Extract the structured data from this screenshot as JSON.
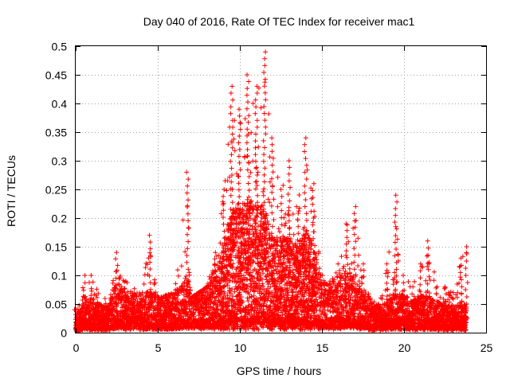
{
  "chart_data": {
    "type": "scatter",
    "title": "Day 040 of 2016, Rate Of TEC Index for receiver mac1",
    "xlabel": "GPS time / hours",
    "ylabel": "ROTI / TECUs",
    "xlim": [
      0,
      25
    ],
    "ylim": [
      0,
      0.5
    ],
    "x_ticks": [
      "0",
      "5",
      "10",
      "15",
      "20",
      "25"
    ],
    "y_ticks": [
      "0",
      "0.05",
      "0.1",
      "0.15",
      "0.2",
      "0.25",
      "0.3",
      "0.35",
      "0.4",
      "0.45",
      "0.5"
    ],
    "grid": true,
    "marker": "+",
    "color": "#ff0000",
    "envelope_hours": [
      0,
      0.5,
      1,
      2,
      2.5,
      3,
      4,
      4.5,
      5,
      6,
      6.8,
      7,
      8,
      8.5,
      9,
      9.5,
      10,
      10.5,
      11,
      11.5,
      12,
      12.5,
      13,
      13.5,
      14,
      14.5,
      15,
      15.5,
      16,
      16.5,
      17,
      17.5,
      18,
      18.5,
      19,
      19.5,
      20,
      20.5,
      21,
      21.5,
      22,
      22.5,
      23,
      23.5,
      23.8
    ],
    "envelope_max_roti": [
      0.04,
      0.1,
      0.1,
      0.05,
      0.14,
      0.09,
      0.07,
      0.17,
      0.06,
      0.07,
      0.28,
      0.06,
      0.08,
      0.14,
      0.25,
      0.43,
      0.39,
      0.45,
      0.43,
      0.49,
      0.34,
      0.25,
      0.3,
      0.22,
      0.34,
      0.26,
      0.1,
      0.09,
      0.12,
      0.19,
      0.22,
      0.12,
      0.06,
      0.05,
      0.12,
      0.24,
      0.1,
      0.08,
      0.12,
      0.16,
      0.08,
      0.08,
      0.07,
      0.13,
      0.15
    ],
    "envelope_typical_roti": [
      0.015,
      0.035,
      0.03,
      0.025,
      0.05,
      0.04,
      0.035,
      0.04,
      0.035,
      0.04,
      0.05,
      0.05,
      0.05,
      0.06,
      0.08,
      0.12,
      0.12,
      0.13,
      0.12,
      0.12,
      0.09,
      0.09,
      0.09,
      0.08,
      0.1,
      0.08,
      0.05,
      0.05,
      0.05,
      0.06,
      0.05,
      0.04,
      0.03,
      0.025,
      0.03,
      0.04,
      0.035,
      0.03,
      0.035,
      0.035,
      0.03,
      0.03,
      0.025,
      0.03,
      0.025
    ]
  }
}
